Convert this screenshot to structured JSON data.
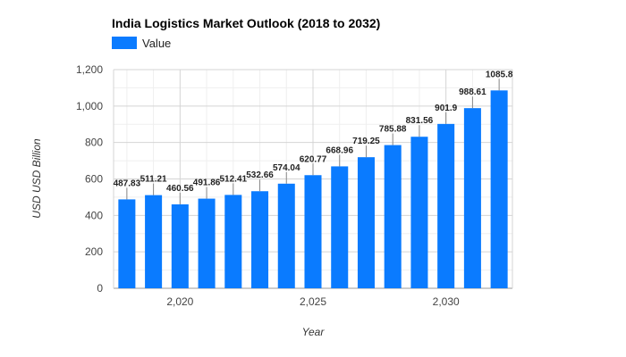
{
  "chart_data": {
    "type": "bar",
    "title": "India Logistics Market Outlook (2018 to 2032)",
    "legend": {
      "position": "top-left",
      "entries": [
        {
          "name": "Value",
          "color": "#0a7bff"
        }
      ]
    },
    "xlabel": "Year",
    "ylabel": "USD USD Billion",
    "x": [
      2018,
      2019,
      2020,
      2021,
      2022,
      2023,
      2024,
      2025,
      2026,
      2027,
      2028,
      2029,
      2030,
      2031,
      2032
    ],
    "x_ticks": [
      2020,
      2025,
      2030
    ],
    "x_tick_labels": [
      "2,020",
      "2,025",
      "2,030"
    ],
    "series": [
      {
        "name": "Value",
        "color": "#0a7bff",
        "values": [
          487.83,
          511.21,
          460.56,
          491.86,
          512.41,
          532.66,
          574.04,
          620.77,
          668.96,
          719.25,
          785.88,
          831.56,
          901.9,
          988.61,
          1085.8
        ],
        "labels": [
          "487.83",
          "511.21",
          "460.56",
          "491.86",
          "512.41",
          "532.66",
          "574.04",
          "620.77",
          "668.96",
          "719.25",
          "785.88",
          "831.56",
          "901.9",
          "988.61",
          "1085.8"
        ]
      }
    ],
    "ylim": [
      0,
      1200
    ],
    "y_ticks": [
      0,
      200,
      400,
      600,
      800,
      1000,
      1200
    ],
    "y_tick_labels": [
      "0",
      "200",
      "400",
      "600",
      "800",
      "1,000",
      "1,200"
    ],
    "grid": true
  }
}
